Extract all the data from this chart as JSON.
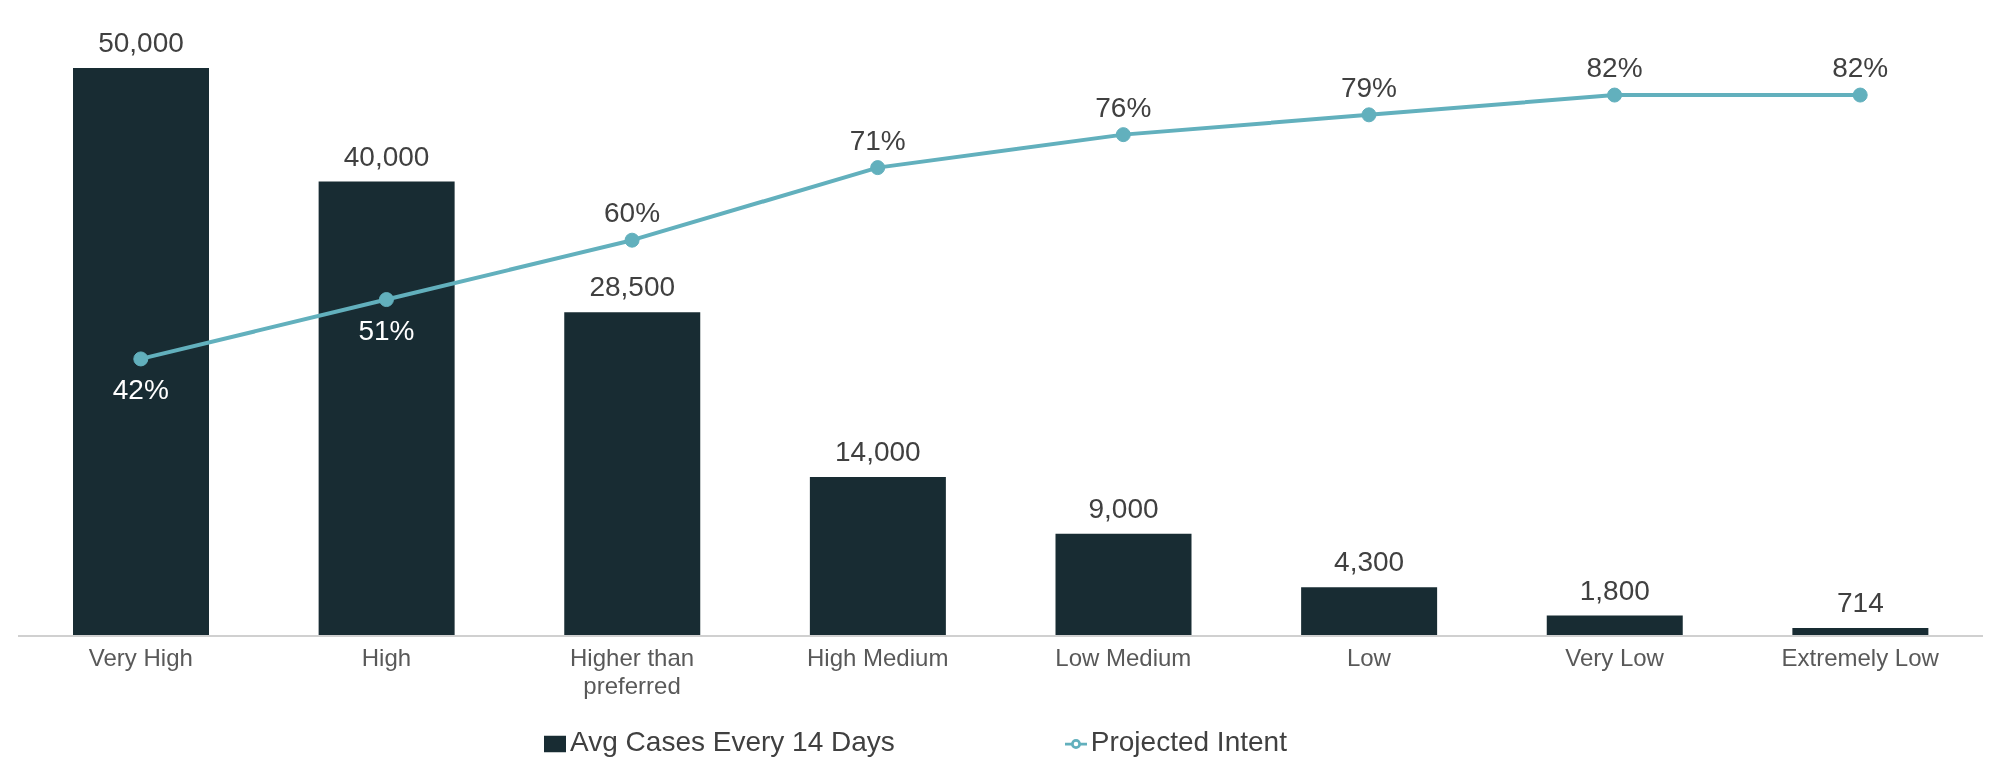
{
  "chart_data": {
    "type": "bar",
    "categories": [
      "Very High",
      "High",
      "Higher than preferred",
      "High Medium",
      "Low Medium",
      "Low",
      "Very Low",
      "Extremely Low"
    ],
    "series": [
      {
        "name": "Avg Cases Every 14 Days",
        "color": "#182c33",
        "values": [
          50000,
          40000,
          28500,
          14000,
          9000,
          4300,
          1800,
          714
        ],
        "value_labels": [
          "50,000",
          "40,000",
          "28,500",
          "14,000",
          "9,000",
          "4,300",
          "1,800",
          "714"
        ]
      },
      {
        "name": "Projected Intent",
        "type": "line",
        "axis": "y2",
        "color": "#62b0bd",
        "values": [
          42,
          51,
          60,
          71,
          76,
          79,
          82,
          82
        ],
        "value_labels": [
          "42%",
          "51%",
          "60%",
          "71%",
          "76%",
          "79%",
          "82%",
          "82%"
        ]
      }
    ],
    "marker": "circle",
    "legend": "bottom",
    "grid": false
  }
}
